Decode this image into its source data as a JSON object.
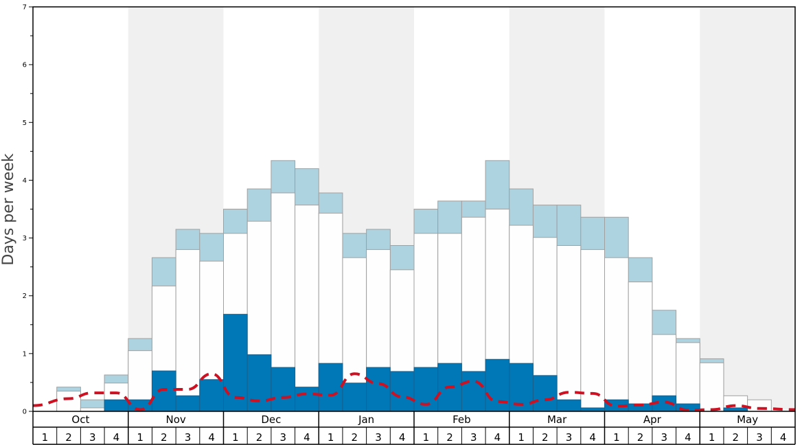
{
  "chart_data": {
    "type": "bar",
    "title": "",
    "ylabel": "Days per week",
    "xlabel": "",
    "ylim": [
      0,
      7
    ],
    "yticks": [
      0,
      1,
      2,
      3,
      4,
      5,
      6,
      7
    ],
    "months": [
      "Oct",
      "Nov",
      "Dec",
      "Jan",
      "Feb",
      "Mar",
      "Apr",
      "May"
    ],
    "week_labels": [
      "1",
      "2",
      "3",
      "4"
    ],
    "grid": false,
    "series": [
      {
        "key": "dark",
        "color": "#0077b6",
        "values": [
          0,
          0,
          0,
          0.2,
          0.2,
          0.7,
          0.27,
          0.55,
          1.68,
          0.98,
          0.76,
          0.42,
          0.83,
          0.49,
          0.76,
          0.69,
          0.76,
          0.83,
          0.69,
          0.9,
          0.83,
          0.62,
          0.2,
          0.06,
          0.2,
          0.13,
          0.27,
          0.13,
          0,
          0.06,
          0,
          0
        ]
      },
      {
        "key": "white",
        "color": "#fefefe",
        "values": [
          0,
          0.35,
          0.06,
          0.49,
          1.05,
          2.17,
          2.8,
          2.6,
          3.08,
          3.29,
          3.78,
          3.57,
          3.43,
          2.66,
          2.8,
          2.45,
          3.08,
          3.08,
          3.36,
          3.5,
          3.22,
          3.01,
          2.87,
          2.8,
          2.66,
          2.24,
          1.33,
          1.19,
          0.84,
          0.27,
          0.2,
          0
        ]
      },
      {
        "key": "light",
        "color": "#aed3e0",
        "values": [
          0,
          0.42,
          0.2,
          0.63,
          1.26,
          2.66,
          3.15,
          3.08,
          3.5,
          3.85,
          4.34,
          4.2,
          3.78,
          3.08,
          3.15,
          2.87,
          3.5,
          3.64,
          3.64,
          4.34,
          3.85,
          3.57,
          3.57,
          3.36,
          3.36,
          2.66,
          1.75,
          1.26,
          0.91,
          0,
          0,
          0
        ]
      }
    ],
    "trend": {
      "color": "#cc1122",
      "values": [
        0.1,
        0.22,
        0.32,
        0.32,
        0.03,
        0.38,
        0.38,
        0.65,
        0.24,
        0.18,
        0.24,
        0.3,
        0.28,
        0.65,
        0.48,
        0.25,
        0.12,
        0.42,
        0.52,
        0.17,
        0.12,
        0.2,
        0.33,
        0.31,
        0.09,
        0.11,
        0.16,
        0.02,
        0.03,
        0.1,
        0.05,
        0.03
      ]
    }
  }
}
